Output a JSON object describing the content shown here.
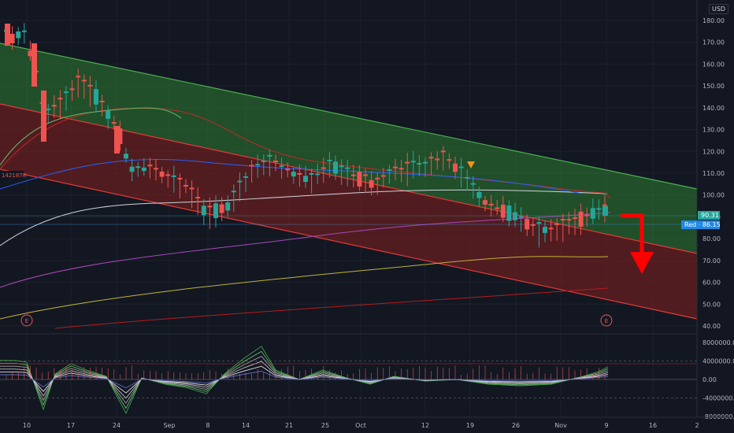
{
  "currency_label": "USD",
  "price_axis": {
    "ticks": [
      "180.00",
      "170.00",
      "160.00",
      "150.00",
      "140.00",
      "130.00",
      "120.00",
      "110.00",
      "100.00",
      "90.00",
      "80.00",
      "70.00",
      "60.00",
      "50.00",
      "40.00"
    ]
  },
  "indicator_axis": {
    "ticks": [
      "8000000.00",
      "4000000.00",
      "0.00",
      "-4000000.00",
      "-8000000.00"
    ]
  },
  "x_axis": {
    "ticks": [
      "10",
      "17",
      "24",
      "Sep",
      "8",
      "14",
      "21",
      "25",
      "Oct",
      "12",
      "19",
      "26",
      "Nov",
      "9",
      "16",
      "2"
    ]
  },
  "price_tags": {
    "last": "90.31",
    "red_label": "Red",
    "red_value": "86.15"
  },
  "left_label": "1421878",
  "earnings_marker": "E",
  "colors": {
    "background": "#131722",
    "up": "#26a69a",
    "down": "#ef5350",
    "channel_upper_fill": "#2e7d32",
    "channel_lower_fill": "#8b2323",
    "arrow": "#ff0000",
    "marker": "#f7931a"
  },
  "chart_data": {
    "type": "line",
    "y_range": [
      40,
      185
    ],
    "candles_summary": [
      {
        "x": 10,
        "o": 178,
        "c": 170,
        "h": 182,
        "l": 165
      },
      {
        "x": 13,
        "o": 174,
        "c": 158,
        "h": 176,
        "l": 154
      },
      {
        "x": 16,
        "o": 153,
        "c": 130,
        "h": 158,
        "l": 120
      },
      {
        "x": 19,
        "o": 148,
        "c": 144,
        "h": 153,
        "l": 140
      },
      {
        "x": 24,
        "o": 133,
        "c": 120,
        "h": 136,
        "l": 115
      },
      {
        "x": 28,
        "o": 113,
        "c": 107,
        "h": 115,
        "l": 100
      },
      {
        "x": 31,
        "o": 102,
        "c": 96,
        "h": 104,
        "l": 92
      },
      {
        "x": 36,
        "o": 95,
        "c": 88,
        "h": 96,
        "l": 86
      },
      {
        "x": 41,
        "o": 98,
        "c": 104,
        "h": 106,
        "l": 96
      },
      {
        "x": 46,
        "o": 112,
        "c": 118,
        "h": 122,
        "l": 110
      },
      {
        "x": 51,
        "o": 110,
        "c": 108,
        "h": 113,
        "l": 104
      },
      {
        "x": 56,
        "o": 104,
        "c": 106,
        "h": 110,
        "l": 101
      },
      {
        "x": 61,
        "o": 110,
        "c": 114,
        "h": 116,
        "l": 108
      },
      {
        "x": 66,
        "o": 118,
        "c": 112,
        "h": 122,
        "l": 108
      },
      {
        "x": 71,
        "o": 107,
        "c": 99,
        "h": 109,
        "l": 95
      },
      {
        "x": 76,
        "o": 96,
        "c": 92,
        "h": 97,
        "l": 88
      },
      {
        "x": 81,
        "o": 86,
        "c": 81,
        "h": 88,
        "l": 80
      },
      {
        "x": 86,
        "o": 84,
        "c": 88,
        "h": 90,
        "l": 82
      },
      {
        "x": 90,
        "o": 91,
        "c": 95,
        "h": 101,
        "l": 89
      }
    ]
  }
}
